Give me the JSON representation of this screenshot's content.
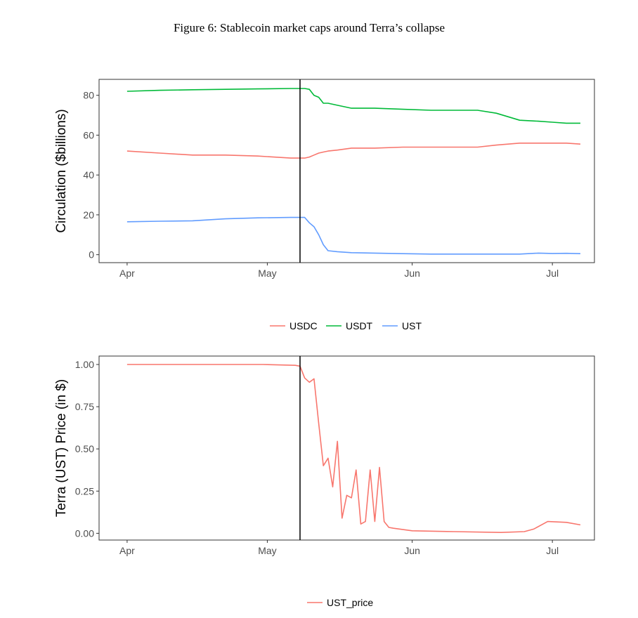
{
  "figure_title": "Figure 6: Stablecoin market caps around Terra’s collapse",
  "colors": {
    "USDC": "#F8766D",
    "USDT": "#00BA38",
    "UST": "#619CFF",
    "UST_price": "#F8766D",
    "event_line": "#000000",
    "axis": "#333333",
    "grid": "none"
  },
  "chart_data": [
    {
      "type": "line",
      "title": "",
      "xlabel": "",
      "ylabel": "Circulation ($billions)",
      "x_ticks": [
        "Apr",
        "May",
        "Jun",
        "Jul"
      ],
      "y_ticks": [
        "0",
        "20",
        "40",
        "60",
        "80"
      ],
      "ylim": [
        -4,
        88
      ],
      "xlim": [
        "2022-03-26",
        "2022-07-10"
      ],
      "grid": false,
      "legend_position": "bottom",
      "event_line": "2022-05-08",
      "x": [
        "2022-04-01",
        "2022-04-08",
        "2022-04-15",
        "2022-04-22",
        "2022-04-29",
        "2022-05-06",
        "2022-05-09",
        "2022-05-10",
        "2022-05-11",
        "2022-05-12",
        "2022-05-13",
        "2022-05-14",
        "2022-05-16",
        "2022-05-19",
        "2022-05-24",
        "2022-05-30",
        "2022-06-05",
        "2022-06-11",
        "2022-06-15",
        "2022-06-19",
        "2022-06-24",
        "2022-06-28",
        "2022-07-01",
        "2022-07-04",
        "2022-07-07"
      ],
      "series": [
        {
          "name": "USDC",
          "values": [
            52,
            51,
            50,
            50,
            49.5,
            48.5,
            48.5,
            49,
            50,
            51,
            51.5,
            52,
            52.5,
            53.5,
            53.5,
            54,
            54,
            54,
            54,
            55,
            56,
            56,
            56,
            56,
            55.5
          ]
        },
        {
          "name": "USDT",
          "values": [
            82,
            82.5,
            82.8,
            83,
            83.2,
            83.4,
            83.4,
            83,
            80,
            79,
            76,
            76,
            75,
            73.5,
            73.5,
            73,
            72.5,
            72.5,
            72.5,
            71,
            67.5,
            67,
            66.5,
            66,
            66
          ]
        },
        {
          "name": "UST",
          "values": [
            16.5,
            16.8,
            17,
            18,
            18.5,
            18.7,
            18.7,
            16,
            14,
            10,
            5,
            2,
            1.5,
            1,
            0.8,
            0.5,
            0.3,
            0.3,
            0.3,
            0.3,
            0.3,
            0.8,
            0.6,
            0.7,
            0.5
          ]
        }
      ]
    },
    {
      "type": "line",
      "title": "",
      "xlabel": "",
      "ylabel": "Terra (UST) Price (in $)",
      "x_ticks": [
        "Apr",
        "May",
        "Jun",
        "Jul"
      ],
      "y_ticks": [
        "0.00",
        "0.25",
        "0.50",
        "0.75",
        "1.00"
      ],
      "ylim": [
        -0.04,
        1.05
      ],
      "xlim": [
        "2022-03-26",
        "2022-07-10"
      ],
      "grid": false,
      "legend_position": "bottom",
      "event_line": "2022-05-08",
      "x": [
        "2022-04-01",
        "2022-04-10",
        "2022-04-20",
        "2022-04-30",
        "2022-05-07",
        "2022-05-08",
        "2022-05-09",
        "2022-05-10",
        "2022-05-11",
        "2022-05-12",
        "2022-05-13",
        "2022-05-14",
        "2022-05-15",
        "2022-05-16",
        "2022-05-17",
        "2022-05-18",
        "2022-05-19",
        "2022-05-20",
        "2022-05-21",
        "2022-05-22",
        "2022-05-23",
        "2022-05-24",
        "2022-05-25",
        "2022-05-26",
        "2022-05-27",
        "2022-05-28",
        "2022-06-01",
        "2022-06-10",
        "2022-06-20",
        "2022-06-25",
        "2022-06-27",
        "2022-06-30",
        "2022-07-04",
        "2022-07-07"
      ],
      "series": [
        {
          "name": "UST_price",
          "values": [
            1.0,
            1.0,
            1.0,
            1.0,
            0.995,
            0.99,
            0.92,
            0.895,
            0.915,
            0.65,
            0.4,
            0.445,
            0.275,
            0.545,
            0.09,
            0.225,
            0.21,
            0.375,
            0.055,
            0.07,
            0.375,
            0.07,
            0.39,
            0.07,
            0.035,
            0.03,
            0.015,
            0.01,
            0.005,
            0.01,
            0.025,
            0.07,
            0.065,
            0.05
          ]
        }
      ]
    }
  ]
}
